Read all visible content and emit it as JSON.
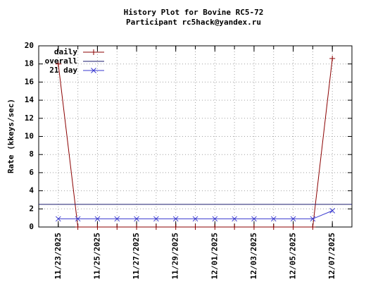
{
  "chart_data": {
    "type": "line",
    "title": "History Plot for Bovine RC5-72",
    "subtitle": "Participant rc5hack@yandex.ru",
    "y_label": "Rate (kkeys/sec)",
    "x": [
      "11/23/2025",
      "11/24/2025",
      "11/25/2025",
      "11/26/2025",
      "11/27/2025",
      "11/28/2025",
      "11/29/2025",
      "11/30/2025",
      "12/01/2025",
      "12/02/2025",
      "12/03/2025",
      "12/04/2025",
      "12/05/2025",
      "12/06/2025",
      "12/07/2025"
    ],
    "series": [
      {
        "name": "daily",
        "color": "#8b0000",
        "marker": "+",
        "values": [
          18,
          0,
          0,
          0,
          0,
          0,
          0,
          0,
          0,
          0,
          0,
          0,
          0,
          0,
          18.6
        ]
      },
      {
        "name": "overall",
        "color": "#1a1a6e",
        "value": 2.5
      },
      {
        "name": "21 day",
        "color": "#3a3ad0",
        "marker": "x",
        "values": [
          0.9,
          0.9,
          0.9,
          0.9,
          0.9,
          0.9,
          0.9,
          0.9,
          0.9,
          0.9,
          0.9,
          0.9,
          0.9,
          0.9,
          1.8
        ]
      }
    ],
    "xlim": [
      "11/22/2025",
      "12/08/2025"
    ],
    "xticks": [
      "11/23/2025",
      "11/25/2025",
      "11/27/2025",
      "11/29/2025",
      "12/01/2025",
      "12/03/2025",
      "12/05/2025",
      "12/07/2025"
    ],
    "ylim": [
      0,
      20
    ],
    "yticks": [
      0,
      2,
      4,
      6,
      8,
      10,
      12,
      14,
      16,
      18,
      20
    ],
    "grid": true,
    "legend": "top-left"
  }
}
